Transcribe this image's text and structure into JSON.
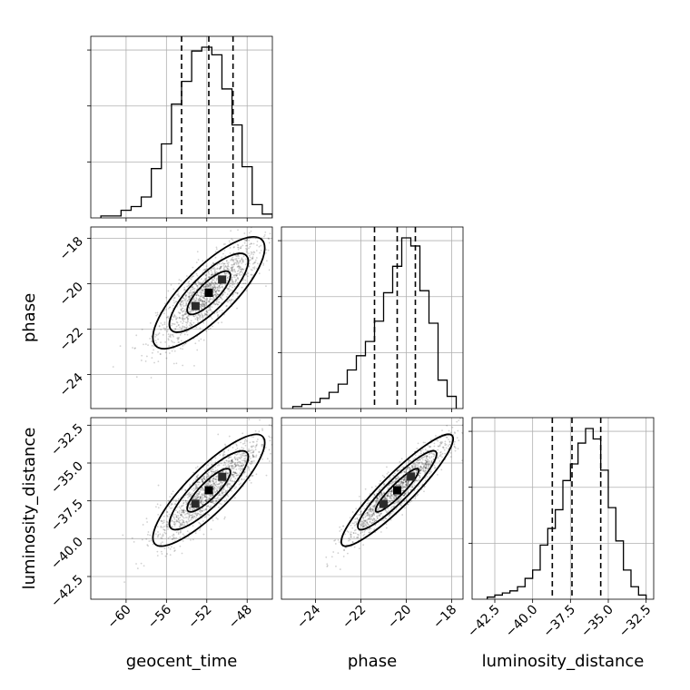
{
  "chart_data": {
    "type": "corner",
    "parameters": [
      "geocent_time",
      "phase",
      "luminosity_distance"
    ],
    "axes": {
      "geocent_time": {
        "range": [
          -63.5,
          -45.5
        ],
        "ticks": [
          -60,
          -56,
          -52,
          -48
        ],
        "tick_labels": [
          "−60",
          "−56",
          "−52",
          "−48"
        ]
      },
      "phase": {
        "range": [
          -25.5,
          -17.5
        ],
        "ticks": [
          -24,
          -22,
          -20,
          -18
        ],
        "tick_labels": [
          "−24",
          "−22",
          "−20",
          "−18"
        ]
      },
      "luminosity_distance": {
        "range": [
          -44.0,
          -32.0
        ],
        "ticks": [
          -42.5,
          -40.0,
          -37.5,
          -35.0,
          -32.5
        ],
        "tick_labels": [
          "−42.5",
          "−40.0",
          "−37.5",
          "−35.0",
          "−32.5"
        ]
      }
    },
    "histograms": [
      {
        "parameter": "geocent_time",
        "bin_edges": [
          -62.5,
          -61.5,
          -60.5,
          -59.5,
          -58.5,
          -57.5,
          -56.5,
          -55.5,
          -54.5,
          -53.5,
          -52.5,
          -51.5,
          -50.5,
          -49.5,
          -48.5,
          -47.5,
          -46.5,
          -45.5
        ],
        "counts": [
          1,
          1,
          4,
          6,
          11,
          26,
          39,
          60,
          72,
          88,
          90,
          86,
          68,
          49,
          27,
          7,
          2
        ],
        "quantiles": [
          -54.5,
          -51.8,
          -49.4
        ]
      },
      {
        "parameter": "phase",
        "bin_edges": [
          -25.0,
          -24.6,
          -24.2,
          -23.8,
          -23.4,
          -23.0,
          -22.6,
          -22.2,
          -21.8,
          -21.4,
          -21.0,
          -20.6,
          -20.2,
          -19.8,
          -19.4,
          -19.0,
          -18.6,
          -18.2,
          -17.8
        ],
        "counts": [
          1,
          2,
          3,
          5,
          8,
          12,
          19,
          26,
          33,
          43,
          57,
          70,
          84,
          80,
          58,
          42,
          14,
          6
        ],
        "quantiles": [
          -21.4,
          -20.4,
          -19.6
        ]
      },
      {
        "parameter": "luminosity_distance",
        "bin_edges": [
          -43.0,
          -42.5,
          -42.0,
          -41.5,
          -41.0,
          -40.5,
          -40.0,
          -39.5,
          -39.0,
          -38.5,
          -38.0,
          -37.5,
          -37.0,
          -36.5,
          -36.0,
          -35.5,
          -35.0,
          -34.5,
          -34.0,
          -33.5,
          -33.0,
          -32.5
        ],
        "counts": [
          1,
          2,
          3,
          4,
          6,
          10,
          14,
          26,
          34,
          43,
          57,
          65,
          75,
          82,
          77,
          62,
          44,
          28,
          14,
          6,
          2
        ],
        "quantiles": [
          -38.7,
          -37.4,
          -35.5
        ]
      }
    ],
    "joint_2d": [
      {
        "x": "geocent_time",
        "y": "phase",
        "center": [
          -51.8,
          -20.4
        ],
        "corr": 0.8
      },
      {
        "x": "geocent_time",
        "y": "luminosity_distance",
        "center": [
          -51.8,
          -36.8
        ],
        "corr": 0.85
      },
      {
        "x": "phase",
        "y": "luminosity_distance",
        "center": [
          -20.4,
          -36.8
        ],
        "corr": 0.92
      }
    ],
    "grid": true
  }
}
